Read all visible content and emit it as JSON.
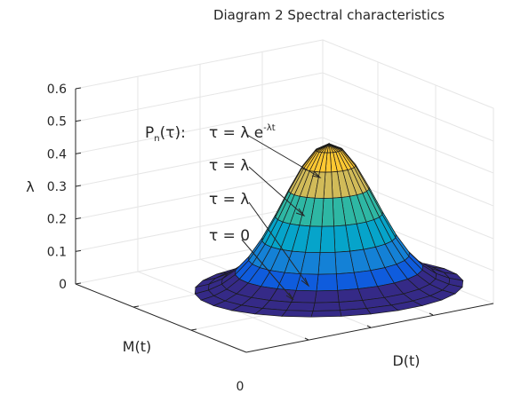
{
  "chart_data": {
    "type": "surface",
    "title": "Diagram 2 Spectral characteristics",
    "xlabel": "M(t)",
    "ylabel": "D(t)",
    "zlabel": "λ",
    "zlim": [
      0,
      0.6
    ],
    "z_ticks": [
      "0",
      "0.1",
      "0.2",
      "0.3",
      "0.4",
      "0.5",
      "0.6"
    ],
    "origin_tick": "0",
    "grid": true,
    "colormap": [
      "#352a87",
      "#0f5cdd",
      "#1481d6",
      "#06a4ca",
      "#2eb7a4",
      "#87bf77",
      "#d1bb59",
      "#fec832",
      "#f9fb0e"
    ],
    "peak": {
      "value": 0.46
    },
    "annotations": {
      "legend_label": {
        "base": "P",
        "sub": "n",
        "rest": "(τ):"
      },
      "labels": [
        {
          "id": "tau-lambda-exp",
          "base": "τ = λ e",
          "sup": "-λt"
        },
        {
          "id": "tau-lambda-1",
          "text": "τ = λ"
        },
        {
          "id": "tau-lambda-2",
          "text": "τ = λ"
        },
        {
          "id": "tau-zero",
          "text": "τ = 0"
        }
      ]
    }
  }
}
